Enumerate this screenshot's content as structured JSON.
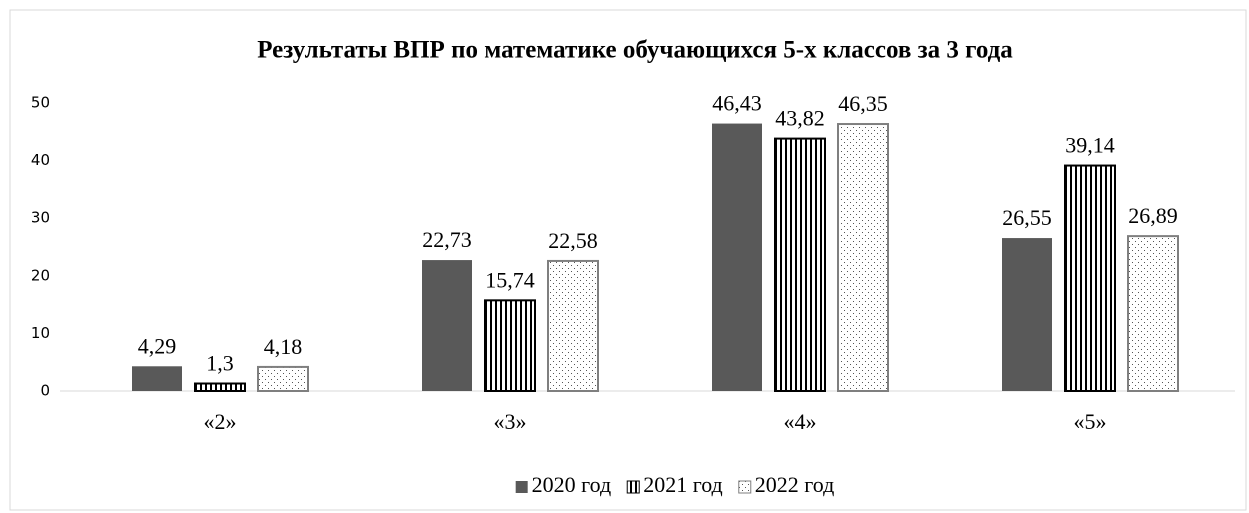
{
  "chart_data": {
    "type": "bar",
    "title": "Результаты  ВПР по математике  обучающихся 5-х классов за 3 года",
    "categories": [
      "«2»",
      "«3»",
      "«4»",
      "«5»"
    ],
    "series": [
      {
        "name": "2020 год",
        "color": "#595959",
        "pattern": "solid",
        "values": [
          4.29,
          22.73,
          46.43,
          26.55
        ],
        "value_labels": [
          "4,29",
          "22,73",
          "46,43",
          "26,55"
        ]
      },
      {
        "name": "2021 год",
        "color": "#000000",
        "pattern": "vertical-stripes",
        "values": [
          1.3,
          15.74,
          43.82,
          39.14
        ],
        "value_labels": [
          "1,3",
          "15,74",
          "43,82",
          "39,14"
        ]
      },
      {
        "name": "2022 год",
        "color": "#7f7f7f",
        "pattern": "dots",
        "values": [
          4.18,
          22.58,
          46.35,
          26.89
        ],
        "value_labels": [
          "4,18",
          "22,58",
          "46,35",
          "26,89"
        ]
      }
    ],
    "ylim": [
      0,
      50
    ],
    "yticks": [
      0,
      10,
      20,
      30,
      40,
      50
    ],
    "grid": false,
    "legend": "bottom"
  }
}
